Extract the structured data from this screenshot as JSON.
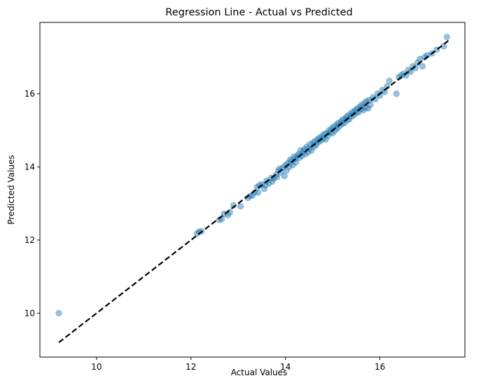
{
  "chart_data": {
    "type": "scatter",
    "title": "Regression Line - Actual vs Predicted",
    "xlabel": "Actual Values",
    "ylabel": "Predicted Values",
    "xlim": [
      8.8,
      17.8
    ],
    "ylim": [
      8.8,
      17.95
    ],
    "xticks": [
      10,
      12,
      14,
      16
    ],
    "yticks": [
      10,
      12,
      14,
      16
    ],
    "grid": false,
    "point_color": "#1f77b4",
    "point_alpha": 0.45,
    "reference_line": {
      "style": "dashed",
      "color": "#000000",
      "x": [
        9.2,
        17.45
      ],
      "y": [
        9.2,
        17.45
      ]
    },
    "points": [
      [
        9.2,
        10.0
      ],
      [
        12.13,
        12.18
      ],
      [
        12.17,
        12.23
      ],
      [
        12.22,
        12.24
      ],
      [
        12.6,
        12.55
      ],
      [
        12.65,
        12.58
      ],
      [
        12.7,
        12.72
      ],
      [
        12.78,
        12.68
      ],
      [
        12.82,
        12.76
      ],
      [
        12.9,
        12.95
      ],
      [
        13.05,
        12.92
      ],
      [
        13.2,
        13.15
      ],
      [
        13.25,
        13.2
      ],
      [
        13.3,
        13.22
      ],
      [
        13.35,
        13.3
      ],
      [
        13.4,
        13.45
      ],
      [
        13.42,
        13.3
      ],
      [
        13.45,
        13.5
      ],
      [
        13.5,
        13.52
      ],
      [
        13.55,
        13.4
      ],
      [
        13.58,
        13.5
      ],
      [
        13.6,
        13.62
      ],
      [
        13.65,
        13.55
      ],
      [
        13.7,
        13.7
      ],
      [
        13.72,
        13.6
      ],
      [
        13.75,
        13.68
      ],
      [
        13.8,
        13.78
      ],
      [
        13.82,
        13.72
      ],
      [
        13.85,
        13.9
      ],
      [
        13.88,
        13.95
      ],
      [
        13.9,
        13.85
      ],
      [
        13.95,
        13.98
      ],
      [
        13.98,
        13.75
      ],
      [
        14.0,
        14.05
      ],
      [
        14.02,
        13.9
      ],
      [
        14.05,
        14.1
      ],
      [
        14.08,
        14.0
      ],
      [
        14.1,
        14.2
      ],
      [
        14.12,
        14.15
      ],
      [
        14.15,
        14.05
      ],
      [
        14.18,
        14.28
      ],
      [
        14.2,
        14.22
      ],
      [
        14.22,
        14.12
      ],
      [
        14.25,
        14.3
      ],
      [
        14.28,
        14.35
      ],
      [
        14.3,
        14.25
      ],
      [
        14.32,
        14.45
      ],
      [
        14.35,
        14.3
      ],
      [
        14.38,
        14.42
      ],
      [
        14.4,
        14.48
      ],
      [
        14.42,
        14.35
      ],
      [
        14.45,
        14.55
      ],
      [
        14.48,
        14.4
      ],
      [
        14.5,
        14.5
      ],
      [
        14.52,
        14.62
      ],
      [
        14.55,
        14.45
      ],
      [
        14.58,
        14.65
      ],
      [
        14.6,
        14.55
      ],
      [
        14.62,
        14.7
      ],
      [
        14.65,
        14.6
      ],
      [
        14.68,
        14.75
      ],
      [
        14.7,
        14.68
      ],
      [
        14.72,
        14.8
      ],
      [
        14.75,
        14.72
      ],
      [
        14.78,
        14.85
      ],
      [
        14.8,
        14.78
      ],
      [
        14.82,
        14.9
      ],
      [
        14.85,
        14.75
      ],
      [
        14.88,
        14.92
      ],
      [
        14.9,
        14.85
      ],
      [
        14.92,
        15.0
      ],
      [
        14.95,
        14.95
      ],
      [
        14.98,
        15.05
      ],
      [
        15.0,
        14.92
      ],
      [
        15.02,
        15.1
      ],
      [
        15.05,
        15.0
      ],
      [
        15.08,
        15.15
      ],
      [
        15.1,
        15.05
      ],
      [
        15.12,
        15.2
      ],
      [
        15.15,
        15.12
      ],
      [
        15.18,
        15.25
      ],
      [
        15.2,
        15.18
      ],
      [
        15.22,
        15.3
      ],
      [
        15.25,
        15.2
      ],
      [
        15.28,
        15.35
      ],
      [
        15.3,
        15.28
      ],
      [
        15.32,
        15.4
      ],
      [
        15.35,
        15.3
      ],
      [
        15.38,
        15.45
      ],
      [
        15.4,
        15.38
      ],
      [
        15.42,
        15.5
      ],
      [
        15.45,
        15.42
      ],
      [
        15.48,
        15.55
      ],
      [
        15.5,
        15.48
      ],
      [
        15.52,
        15.6
      ],
      [
        15.55,
        15.5
      ],
      [
        15.58,
        15.65
      ],
      [
        15.6,
        15.58
      ],
      [
        15.62,
        15.7
      ],
      [
        15.65,
        15.55
      ],
      [
        15.68,
        15.75
      ],
      [
        15.7,
        15.62
      ],
      [
        15.72,
        15.8
      ],
      [
        15.75,
        15.6
      ],
      [
        15.78,
        15.82
      ],
      [
        15.8,
        15.7
      ],
      [
        15.85,
        15.9
      ],
      [
        15.9,
        15.85
      ],
      [
        15.95,
        16.0
      ],
      [
        16.0,
        15.95
      ],
      [
        16.05,
        16.1
      ],
      [
        16.1,
        16.05
      ],
      [
        16.15,
        16.2
      ],
      [
        16.2,
        16.35
      ],
      [
        16.35,
        16.0
      ],
      [
        16.4,
        16.45
      ],
      [
        16.45,
        16.5
      ],
      [
        16.5,
        16.55
      ],
      [
        16.55,
        16.5
      ],
      [
        16.6,
        16.65
      ],
      [
        16.65,
        16.6
      ],
      [
        16.7,
        16.75
      ],
      [
        16.75,
        16.7
      ],
      [
        16.8,
        16.85
      ],
      [
        16.85,
        16.95
      ],
      [
        16.9,
        16.75
      ],
      [
        16.95,
        17.0
      ],
      [
        17.0,
        17.05
      ],
      [
        17.1,
        17.1
      ],
      [
        17.2,
        17.2
      ],
      [
        17.35,
        17.3
      ],
      [
        17.42,
        17.55
      ]
    ]
  }
}
